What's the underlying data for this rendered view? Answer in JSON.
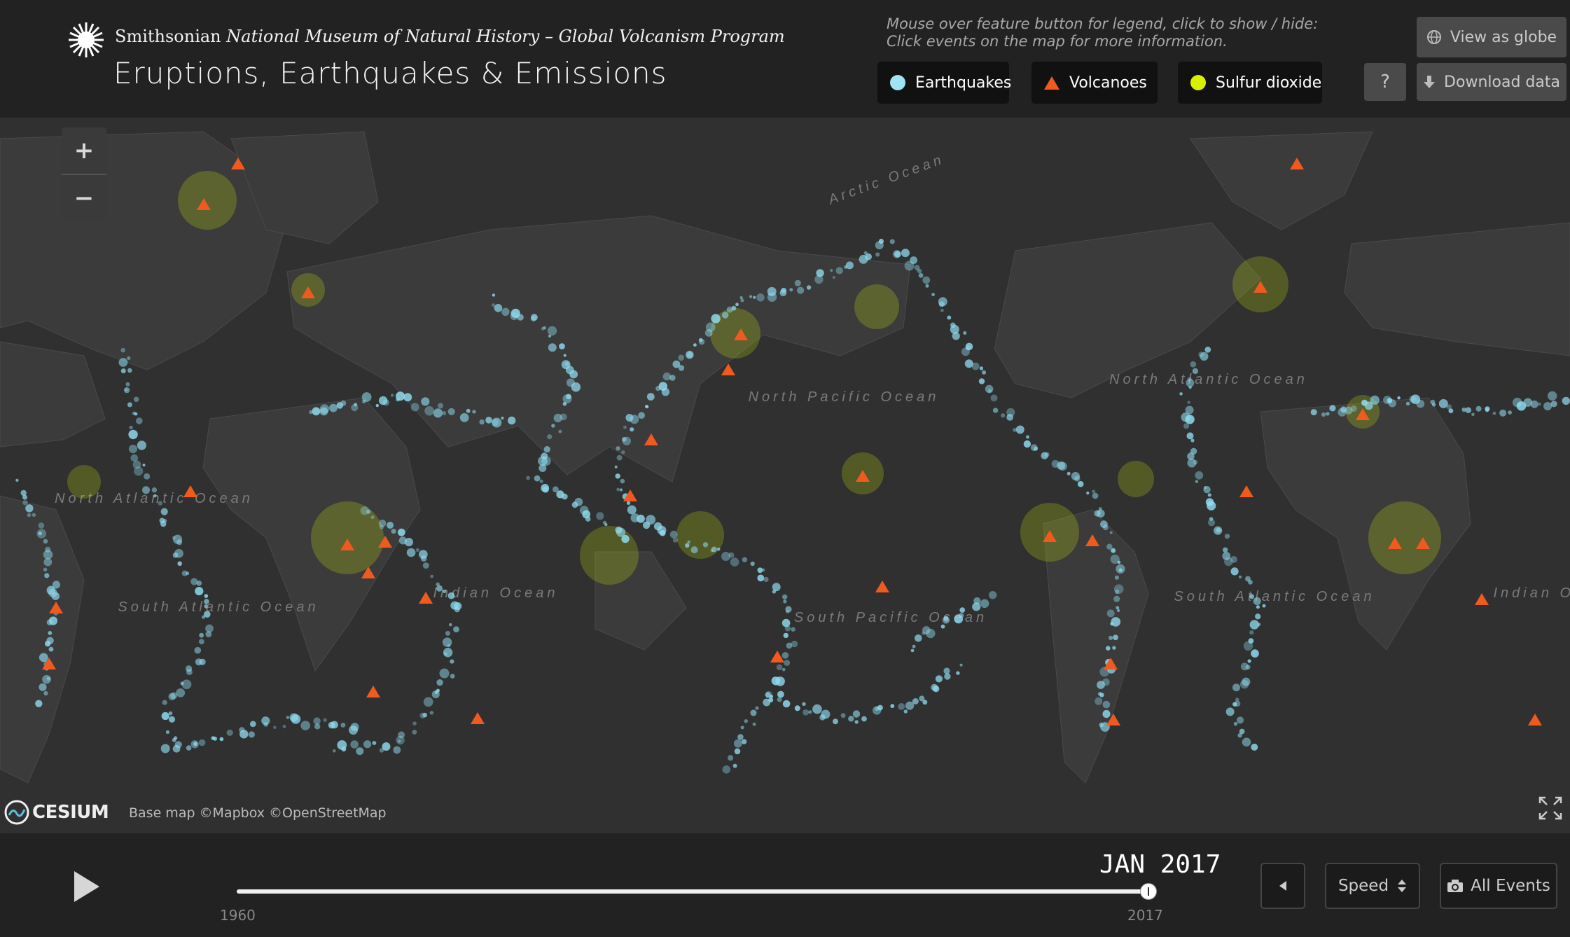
{
  "header": {
    "org_prefix": "Smithsonian",
    "org_italic": "National Museum of Natural History – Global Volcanism Program",
    "title": "Eruptions, Earthquakes & Emissions",
    "hint_line1": "Mouse over feature button for legend, click to show / hide:",
    "hint_line2": "Click events on the map for more information.",
    "legend": [
      {
        "label": "Earthquakes",
        "color": "#9fe3f5",
        "icon": "circle"
      },
      {
        "label": "Volcanoes",
        "color": "#f05a1e",
        "icon": "triangle"
      },
      {
        "label": "Sulfur dioxide",
        "color": "#d8f000",
        "icon": "circle"
      }
    ],
    "view_globe_label": "View as globe",
    "help_label": "?",
    "download_label": "Download data"
  },
  "map": {
    "ocean_labels": [
      {
        "text": "Arctic Ocean"
      },
      {
        "text": "North Atlantic Ocean"
      },
      {
        "text": "North Pacific Ocean"
      },
      {
        "text": "South Atlantic Ocean"
      },
      {
        "text": "Indian Ocean"
      },
      {
        "text": "South Pacific Ocean"
      },
      {
        "text": "North Atlantic Ocean"
      },
      {
        "text": "South Atlantic Ocean"
      },
      {
        "text": "Indian Ocean"
      }
    ],
    "zoom_in": "+",
    "zoom_out": "−",
    "brand": "CESIUM",
    "credit": "Base map ©Mapbox ©OpenStreetMap"
  },
  "timeline": {
    "current_date": "JAN  2017",
    "start_year": "1960",
    "end_year": "2017",
    "progress": 1.0,
    "speed_label": "Speed",
    "all_events_label": "All Events"
  },
  "colors": {
    "earthquake": "#8fdcf2",
    "volcano": "#f05a1e",
    "so2": "#d8f000",
    "map_bg": "#303030",
    "land": "#3b3b3b"
  }
}
